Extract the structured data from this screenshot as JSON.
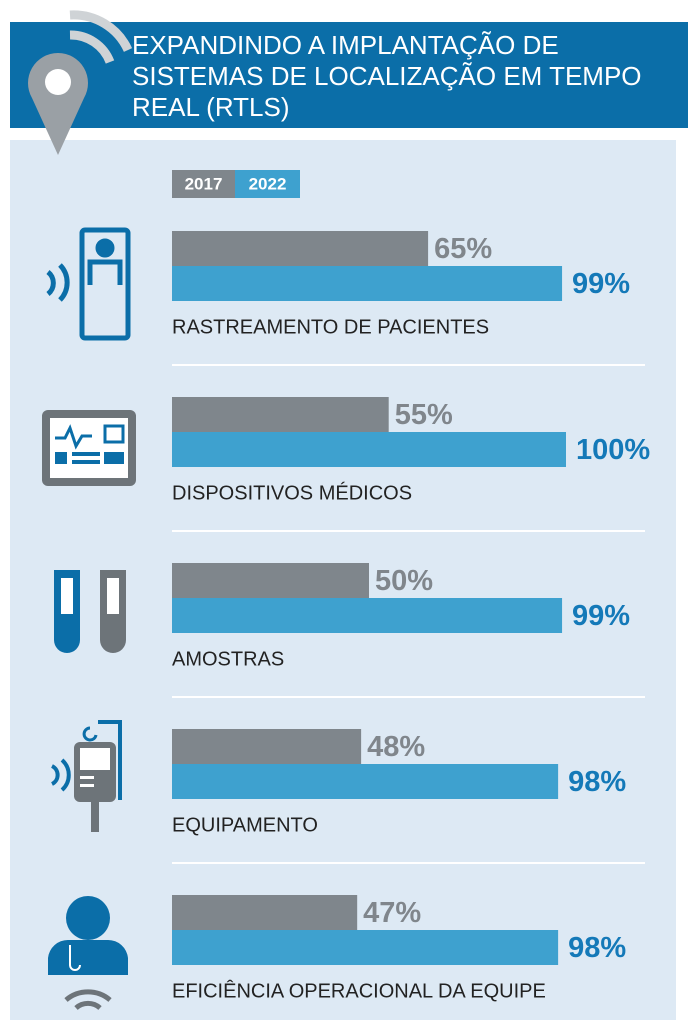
{
  "chart_data": {
    "type": "bar",
    "orientation": "horizontal",
    "title": "EXPANDINDO A IMPLANTAÇÃO DE SISTEMAS DE LOCALIZAÇÃO EM TEMPO REAL (RTLS)",
    "categories": [
      "RASTREAMENTO DE PACIENTES",
      "DISPOSITIVOS MÉDICOS",
      "AMOSTRAS",
      "EQUIPAMENTO",
      "EFICIÊNCIA OPERACIONAL DA EQUIPE"
    ],
    "series": [
      {
        "name": "2017",
        "color": "#7f868c",
        "label_color": "#80868c",
        "values": [
          65,
          55,
          50,
          48,
          47
        ],
        "value_labels": [
          "65%",
          "55%",
          "50%",
          "48%",
          "47%"
        ]
      },
      {
        "name": "2022",
        "color": "#3ea1cf",
        "label_color": "#1479b8",
        "values": [
          99,
          100,
          99,
          98,
          98
        ],
        "value_labels": [
          "99%",
          "100%",
          "99%",
          "98%",
          "98%"
        ]
      }
    ]
  }
}
